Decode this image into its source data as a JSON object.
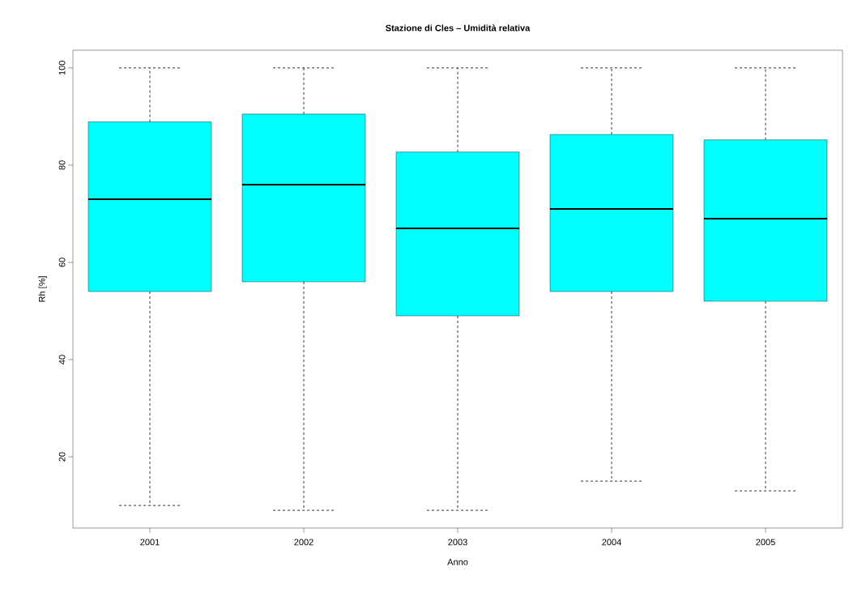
{
  "chart_data": {
    "type": "box",
    "title": "Stazione di Cles – Umidità relativa",
    "xlabel": "Anno",
    "ylabel": "Rh [%]",
    "categories": [
      "2001",
      "2002",
      "2003",
      "2004",
      "2005"
    ],
    "boxes": [
      {
        "low": 10,
        "q1": 54,
        "median": 73,
        "q3": 88.9,
        "high": 100
      },
      {
        "low": 9,
        "q1": 56,
        "median": 76,
        "q3": 90.5,
        "high": 100
      },
      {
        "low": 9,
        "q1": 49,
        "median": 67,
        "q3": 82.7,
        "high": 100
      },
      {
        "low": 15,
        "q1": 54,
        "median": 71,
        "q3": 86.3,
        "high": 100
      },
      {
        "low": 13,
        "q1": 52,
        "median": 69,
        "q3": 85.2,
        "high": 100
      }
    ],
    "color": "#00ffff",
    "ylim": [
      5.36,
      103.64
    ],
    "yticks": [
      20,
      40,
      60,
      80,
      100
    ],
    "grid": false
  }
}
